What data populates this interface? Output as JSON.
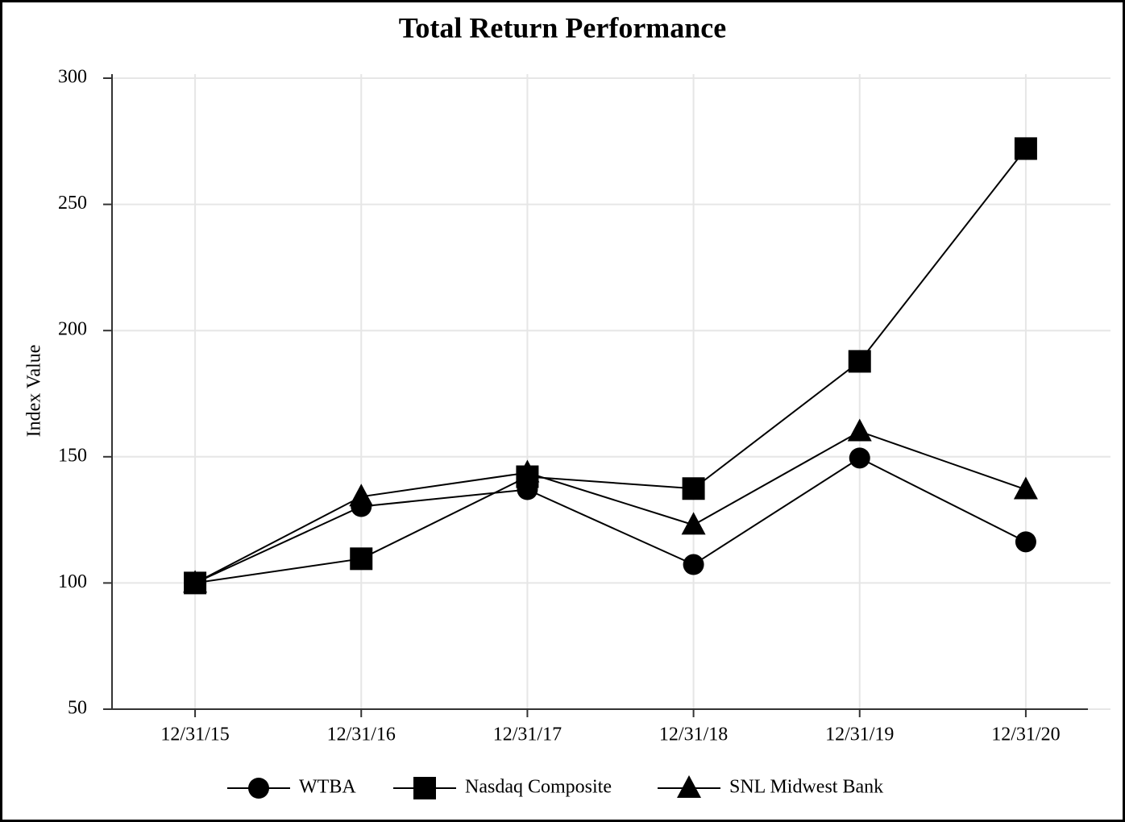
{
  "chart_data": {
    "type": "line",
    "title": "Total Return Performance",
    "y_label": "Index Value",
    "categories": [
      "12/31/15",
      "12/31/16",
      "12/31/17",
      "12/31/18",
      "12/31/19",
      "12/31/20"
    ],
    "series": [
      {
        "name": "WTBA",
        "color": "#000000",
        "marker": "circle",
        "values": [
          100,
          130.3,
          137,
          107.3,
          149.5,
          116.3
        ]
      },
      {
        "name": "Nasdaq Composite",
        "color": "#000000",
        "marker": "square",
        "values": [
          100,
          109.6,
          142.1,
          137.4,
          187.8,
          272.1
        ]
      },
      {
        "name": "SNL Midwest Bank",
        "color": "#000000",
        "marker": "triangle",
        "values": [
          100,
          134.2,
          143.7,
          123,
          160,
          137
        ]
      }
    ],
    "ylim": [
      50,
      300
    ],
    "yticks": [
      50,
      100,
      150,
      200,
      250,
      300
    ],
    "grid": true,
    "legend": "bottom"
  }
}
